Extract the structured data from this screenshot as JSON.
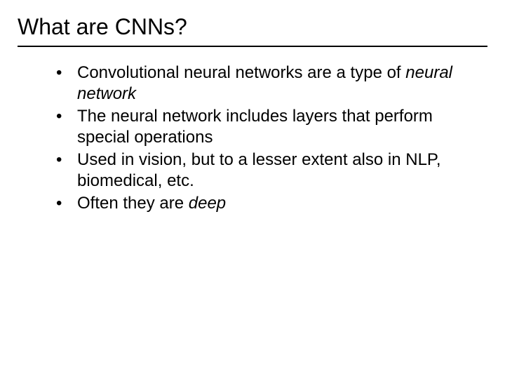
{
  "slide": {
    "title": "What are CNNs?",
    "title_fontsize": 32,
    "body_fontsize": 24,
    "text_color": "#000000",
    "background_color": "#ffffff",
    "divider_color": "#000000",
    "bullets": [
      {
        "pre": "Convolutional neural networks are a type of ",
        "em": "neural network",
        "post": ""
      },
      {
        "pre": "The neural network includes layers that perform special operations",
        "em": "",
        "post": ""
      },
      {
        "pre": "Used in vision, but to a lesser extent also in NLP, biomedical, etc.",
        "em": "",
        "post": ""
      },
      {
        "pre": "Often they are ",
        "em": "deep",
        "post": ""
      }
    ],
    "bullet_glyph": "•"
  }
}
